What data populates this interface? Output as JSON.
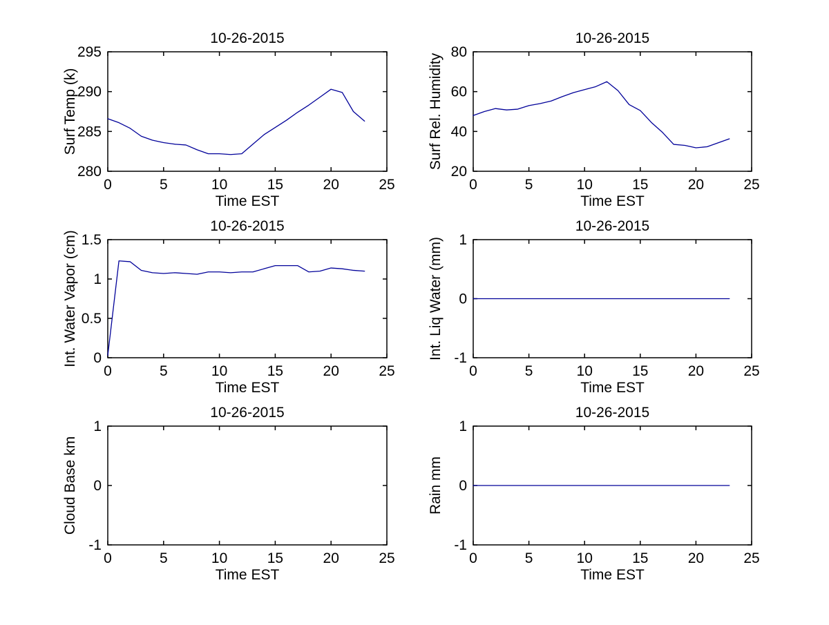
{
  "figure": {
    "background": "#ffffff",
    "axis_color": "#000000",
    "text_color": "#000000",
    "line_color": "#000099"
  },
  "chart_data": [
    {
      "id": "surf-temp",
      "type": "line",
      "title": "10-26-2015",
      "xlabel": "Time EST",
      "ylabel": "Surf Temp (k)",
      "xlim": [
        0,
        25
      ],
      "ylim": [
        280,
        295
      ],
      "xticks": [
        0,
        5,
        10,
        15,
        20,
        25
      ],
      "yticks": [
        280,
        285,
        290,
        295
      ],
      "grid": false,
      "legend": null,
      "x": [
        0,
        1,
        2,
        3,
        4,
        5,
        6,
        7,
        8,
        9,
        10,
        11,
        12,
        13,
        14,
        15,
        16,
        17,
        18,
        19,
        20,
        21,
        22,
        23
      ],
      "values": [
        286.6,
        286.1,
        285.4,
        284.4,
        283.9,
        283.6,
        283.4,
        283.3,
        282.7,
        282.2,
        282.2,
        282.1,
        282.2,
        283.4,
        284.6,
        285.5,
        286.4,
        287.4,
        288.3,
        289.3,
        290.3,
        289.9,
        287.5,
        286.3
      ]
    },
    {
      "id": "surf-rel-humidity",
      "type": "line",
      "title": "10-26-2015",
      "xlabel": "Time EST",
      "ylabel": "Surf Rel. Humidity",
      "xlim": [
        0,
        25
      ],
      "ylim": [
        20,
        80
      ],
      "xticks": [
        0,
        5,
        10,
        15,
        20,
        25
      ],
      "yticks": [
        20,
        40,
        60,
        80
      ],
      "grid": false,
      "legend": null,
      "x": [
        0,
        1,
        2,
        3,
        4,
        5,
        6,
        7,
        8,
        9,
        10,
        11,
        12,
        13,
        14,
        15,
        16,
        17,
        18,
        19,
        20,
        21,
        22,
        23
      ],
      "values": [
        48,
        50,
        51.5,
        50.8,
        51.2,
        53,
        54,
        55.3,
        57.5,
        59.5,
        61,
        62.5,
        65,
        60.5,
        53.5,
        50.5,
        44.5,
        39.5,
        33.5,
        33,
        31.8,
        32.3,
        34.3,
        36.3
      ]
    },
    {
      "id": "int-water-vapor",
      "type": "line",
      "title": "10-26-2015",
      "xlabel": "Time EST",
      "ylabel": "Int. Water Vapor (cm)",
      "xlim": [
        0,
        25
      ],
      "ylim": [
        0,
        1.5
      ],
      "xticks": [
        0,
        5,
        10,
        15,
        20,
        25
      ],
      "yticks": [
        0,
        0.5,
        1,
        1.5
      ],
      "grid": false,
      "legend": null,
      "x": [
        0,
        1,
        2,
        3,
        4,
        5,
        6,
        7,
        8,
        9,
        10,
        11,
        12,
        13,
        14,
        15,
        16,
        17,
        18,
        19,
        20,
        21,
        22,
        23
      ],
      "values": [
        0.03,
        1.23,
        1.22,
        1.11,
        1.08,
        1.07,
        1.08,
        1.07,
        1.06,
        1.09,
        1.09,
        1.08,
        1.09,
        1.09,
        1.13,
        1.17,
        1.17,
        1.17,
        1.09,
        1.1,
        1.14,
        1.13,
        1.11,
        1.1
      ]
    },
    {
      "id": "int-liq-water",
      "type": "line",
      "title": "10-26-2015",
      "xlabel": "Time EST",
      "ylabel": "Int. Liq Water (mm)",
      "xlim": [
        0,
        25
      ],
      "ylim": [
        -1,
        1
      ],
      "xticks": [
        0,
        5,
        10,
        15,
        20,
        25
      ],
      "yticks": [
        -1,
        0,
        1
      ],
      "grid": false,
      "legend": null,
      "x": [
        0,
        1,
        2,
        3,
        4,
        5,
        6,
        7,
        8,
        9,
        10,
        11,
        12,
        13,
        14,
        15,
        16,
        17,
        18,
        19,
        20,
        21,
        22,
        23
      ],
      "values": [
        0,
        0,
        0,
        0,
        0,
        0,
        0,
        0,
        0,
        0,
        0,
        0,
        0,
        0,
        0,
        0,
        0,
        0,
        0,
        0,
        0,
        0,
        0,
        0
      ]
    },
    {
      "id": "cloud-base",
      "type": "line",
      "title": "10-26-2015",
      "xlabel": "Time EST",
      "ylabel": "Cloud Base km",
      "xlim": [
        0,
        25
      ],
      "ylim": [
        -1,
        1
      ],
      "xticks": [
        0,
        5,
        10,
        15,
        20,
        25
      ],
      "yticks": [
        -1,
        0,
        1
      ],
      "grid": false,
      "legend": null,
      "x": [],
      "values": []
    },
    {
      "id": "rain",
      "type": "line",
      "title": "10-26-2015",
      "xlabel": "Time EST",
      "ylabel": "Rain mm",
      "xlim": [
        0,
        25
      ],
      "ylim": [
        -1,
        1
      ],
      "xticks": [
        0,
        5,
        10,
        15,
        20,
        25
      ],
      "yticks": [
        -1,
        0,
        1
      ],
      "grid": false,
      "legend": null,
      "x": [
        0,
        1,
        2,
        3,
        4,
        5,
        6,
        7,
        8,
        9,
        10,
        11,
        12,
        13,
        14,
        15,
        16,
        17,
        18,
        19,
        20,
        21,
        22,
        23
      ],
      "values": [
        0,
        0,
        0,
        0,
        0,
        0,
        0,
        0,
        0,
        0,
        0,
        0,
        0,
        0,
        0,
        0,
        0,
        0,
        0,
        0,
        0,
        0,
        0,
        0
      ]
    }
  ]
}
